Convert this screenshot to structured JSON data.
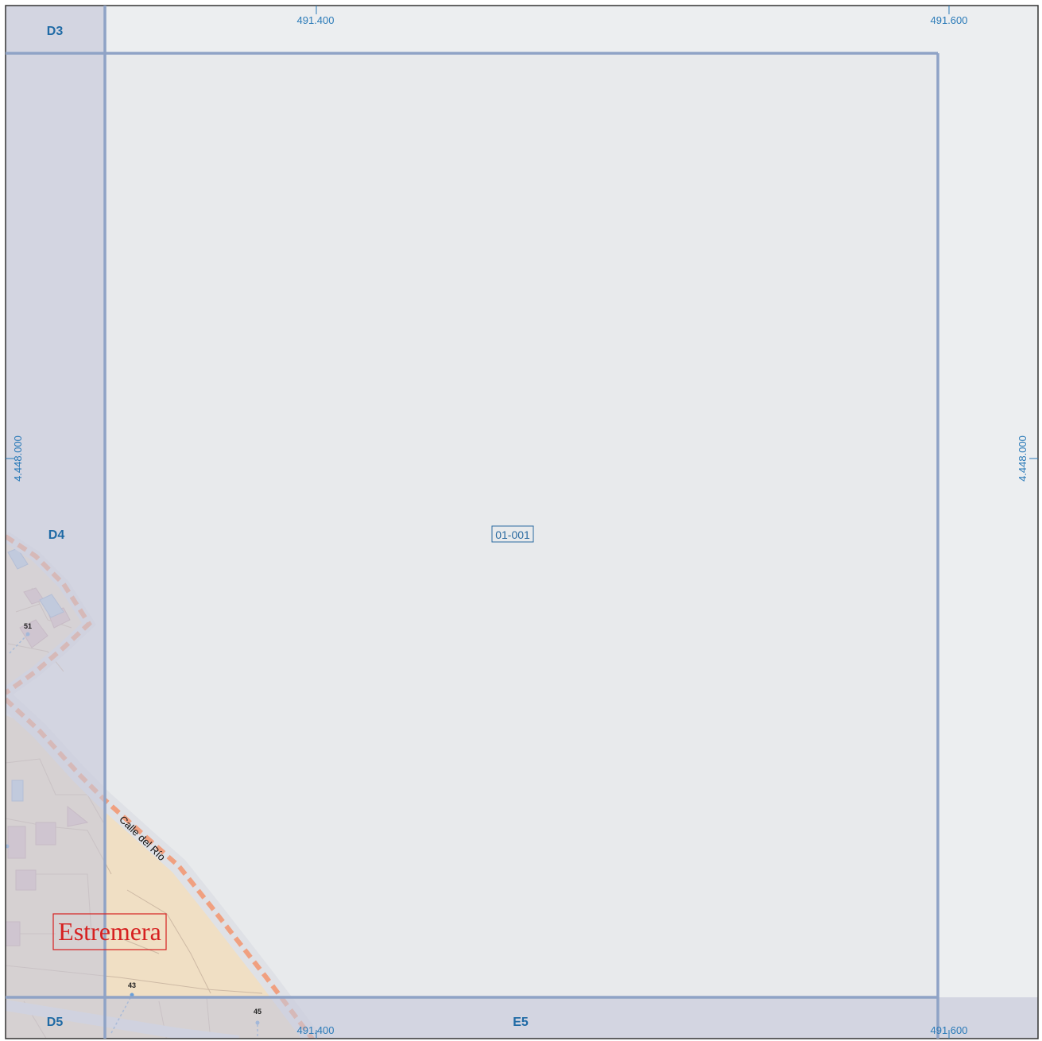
{
  "grid_cells": {
    "d3": "D3",
    "d4": "D4",
    "d5": "D5",
    "e5": "E5"
  },
  "coordinates": {
    "x_left": "491.400",
    "x_right": "491.600",
    "y_mid": "4.448.000"
  },
  "sheet_label": "01-001",
  "street_name": "Calle del Río",
  "house_numbers": [
    "51",
    "43",
    "45"
  ],
  "town_name": "Estremera",
  "colors": {
    "background": "#e8eaec",
    "margin_band": "#d6d8e2",
    "grid_line": "#8fa3c6",
    "road_dash": "#f0a080",
    "urban_fill": "#f0dfc4",
    "town_label": "#d62020",
    "coord_text": "#2a7ab8"
  }
}
